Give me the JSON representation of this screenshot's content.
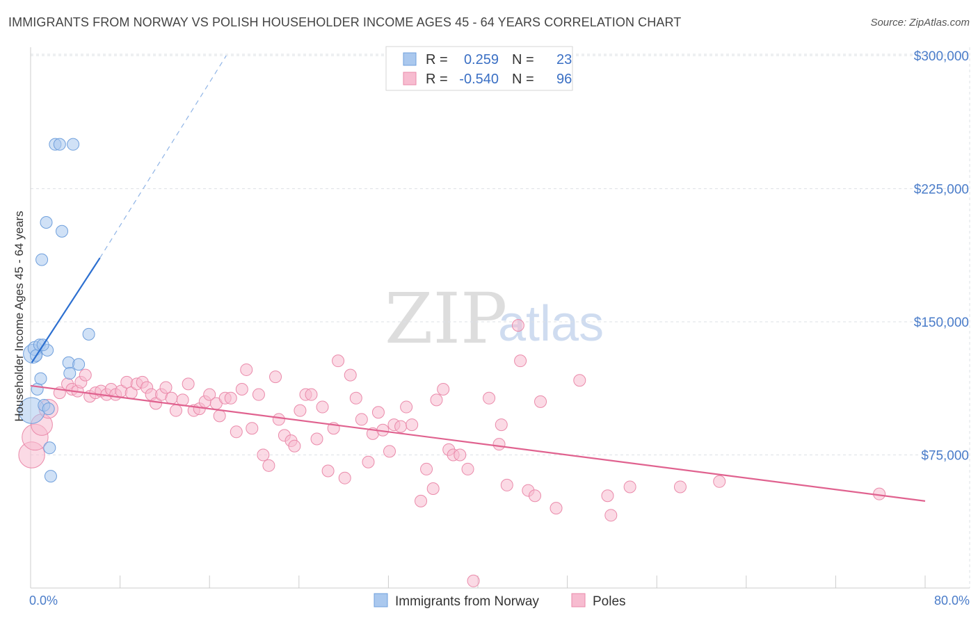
{
  "title": "IMMIGRANTS FROM NORWAY VS POLISH HOUSEHOLDER INCOME AGES 45 - 64 YEARS CORRELATION CHART",
  "source": "Source: ZipAtlas.com",
  "watermark": {
    "zip": "ZIP",
    "atlas": "atlas"
  },
  "colors": {
    "blue_fill": "#aac8ee",
    "blue_stroke": "#6f9fdc",
    "blue_line": "#2c6fd0",
    "pink_fill": "#f7bcd0",
    "pink_stroke": "#ea8aaa",
    "pink_line": "#e0628f",
    "grid": "#dde0e6",
    "tick_text": "#4a7cc9"
  },
  "legend": {
    "rows": [
      {
        "r_label": "R =",
        "r_value": "0.259",
        "n_label": "N =",
        "n_value": "23",
        "series": "blue"
      },
      {
        "r_label": "R =",
        "r_value": "-0.540",
        "n_label": "N =",
        "n_value": "96",
        "series": "pink"
      }
    ]
  },
  "chart_data": {
    "type": "scatter",
    "title": "IMMIGRANTS FROM NORWAY VS POLISH HOUSEHOLDER INCOME AGES 45 - 64 YEARS CORRELATION CHART",
    "xlabel": "",
    "ylabel": "Householder Income Ages 45 - 64 years",
    "xlim": [
      0,
      80
    ],
    "ylim": [
      0,
      315000
    ],
    "x_tick_labels": [
      "0.0%",
      "80.0%"
    ],
    "y_ticks": [
      {
        "value": 75000,
        "label": "$75,000"
      },
      {
        "value": 150000,
        "label": "$150,000"
      },
      {
        "value": 225000,
        "label": "$225,000"
      },
      {
        "value": 300000,
        "label": "$300,000"
      }
    ],
    "grid": true,
    "legend_position": "top-center",
    "series": [
      {
        "name": "Immigrants from Norway",
        "color": "blue",
        "points": [
          [
            0.1,
            100000,
            2.2
          ],
          [
            0.2,
            132000,
            1.6
          ],
          [
            0.4,
            135000,
            1.2
          ],
          [
            0.5,
            131000,
            1.0
          ],
          [
            0.6,
            112000,
            1.0
          ],
          [
            0.8,
            137000,
            1.0
          ],
          [
            0.9,
            118000,
            1.0
          ],
          [
            1.0,
            185000,
            1.0
          ],
          [
            1.2,
            103000,
            1.0
          ],
          [
            1.4,
            206000,
            1.0
          ],
          [
            1.5,
            134000,
            1.0
          ],
          [
            1.6,
            101000,
            1.0
          ],
          [
            1.7,
            79000,
            1.0
          ],
          [
            1.8,
            63000,
            1.0
          ],
          [
            2.2,
            250000,
            1.0
          ],
          [
            2.6,
            250000,
            1.0
          ],
          [
            2.8,
            201000,
            1.0
          ],
          [
            3.4,
            127000,
            1.0
          ],
          [
            3.5,
            121000,
            1.0
          ],
          [
            3.8,
            250000,
            1.0
          ],
          [
            4.3,
            126000,
            1.0
          ],
          [
            5.2,
            143000,
            1.0
          ],
          [
            1.1,
            137000,
            1.0
          ]
        ],
        "trend": {
          "x0": 0.1,
          "y0": 127000,
          "x1": 6.2,
          "y1": 186000,
          "dash_x1": 17.5,
          "dash_y1": 300000
        }
      },
      {
        "name": "Poles",
        "color": "pink",
        "points": [
          [
            0.1,
            75000,
            2.2
          ],
          [
            0.4,
            85000,
            2.2
          ],
          [
            1.0,
            92000,
            1.8
          ],
          [
            1.6,
            101000,
            1.6
          ],
          [
            2.6,
            110000,
            1.0
          ],
          [
            3.3,
            115000,
            1.0
          ],
          [
            3.7,
            112000,
            1.0
          ],
          [
            4.2,
            111000,
            1.0
          ],
          [
            4.5,
            116000,
            1.0
          ],
          [
            4.9,
            120000,
            1.0
          ],
          [
            5.3,
            108000,
            1.0
          ],
          [
            5.8,
            110000,
            1.0
          ],
          [
            6.3,
            111000,
            1.0
          ],
          [
            6.8,
            109000,
            1.0
          ],
          [
            7.2,
            112000,
            1.0
          ],
          [
            7.6,
            109000,
            1.0
          ],
          [
            8.1,
            111000,
            1.0
          ],
          [
            8.6,
            116000,
            1.0
          ],
          [
            9.0,
            110000,
            1.0
          ],
          [
            9.5,
            115000,
            1.0
          ],
          [
            10.0,
            116000,
            1.0
          ],
          [
            10.4,
            113000,
            1.0
          ],
          [
            10.8,
            109000,
            1.0
          ],
          [
            11.2,
            104000,
            1.0
          ],
          [
            11.7,
            109000,
            1.0
          ],
          [
            12.1,
            113000,
            1.0
          ],
          [
            12.6,
            107000,
            1.0
          ],
          [
            13.0,
            100000,
            1.0
          ],
          [
            13.6,
            106000,
            1.0
          ],
          [
            14.1,
            115000,
            1.0
          ],
          [
            14.6,
            100000,
            1.0
          ],
          [
            15.1,
            101000,
            1.0
          ],
          [
            15.6,
            105000,
            1.0
          ],
          [
            16.0,
            109000,
            1.0
          ],
          [
            16.6,
            104000,
            1.0
          ],
          [
            16.9,
            97000,
            1.0
          ],
          [
            17.4,
            107000,
            1.0
          ],
          [
            17.9,
            107000,
            1.0
          ],
          [
            18.4,
            88000,
            1.0
          ],
          [
            18.9,
            112000,
            1.0
          ],
          [
            19.3,
            123000,
            1.0
          ],
          [
            19.8,
            90000,
            1.0
          ],
          [
            20.4,
            109000,
            1.0
          ],
          [
            20.8,
            75000,
            1.0
          ],
          [
            21.3,
            69000,
            1.0
          ],
          [
            21.9,
            119000,
            1.0
          ],
          [
            22.2,
            95000,
            1.0
          ],
          [
            22.7,
            86000,
            1.0
          ],
          [
            23.3,
            83000,
            1.0
          ],
          [
            23.6,
            80000,
            1.0
          ],
          [
            24.1,
            100000,
            1.0
          ],
          [
            24.6,
            109000,
            1.0
          ],
          [
            25.1,
            109000,
            1.0
          ],
          [
            25.6,
            84000,
            1.0
          ],
          [
            26.1,
            102000,
            1.0
          ],
          [
            26.6,
            66000,
            1.0
          ],
          [
            27.1,
            90000,
            1.0
          ],
          [
            27.5,
            128000,
            1.0
          ],
          [
            28.1,
            62000,
            1.0
          ],
          [
            28.6,
            120000,
            1.0
          ],
          [
            29.1,
            107000,
            1.0
          ],
          [
            29.6,
            95000,
            1.0
          ],
          [
            30.2,
            71000,
            1.0
          ],
          [
            30.6,
            87000,
            1.0
          ],
          [
            31.1,
            99000,
            1.0
          ],
          [
            31.5,
            89000,
            1.0
          ],
          [
            32.1,
            77000,
            1.0
          ],
          [
            32.5,
            92000,
            1.0
          ],
          [
            33.1,
            91000,
            1.0
          ],
          [
            33.6,
            102000,
            1.0
          ],
          [
            34.1,
            92000,
            1.0
          ],
          [
            34.9,
            49000,
            1.0
          ],
          [
            35.4,
            67000,
            1.0
          ],
          [
            36.0,
            56000,
            1.0
          ],
          [
            36.3,
            106000,
            1.0
          ],
          [
            36.9,
            112000,
            1.0
          ],
          [
            37.4,
            78000,
            1.0
          ],
          [
            37.8,
            75000,
            1.0
          ],
          [
            38.4,
            75000,
            1.0
          ],
          [
            39.1,
            67000,
            1.0
          ],
          [
            41.0,
            107000,
            1.0
          ],
          [
            41.9,
            81000,
            1.0
          ],
          [
            42.1,
            92000,
            1.0
          ],
          [
            42.6,
            58000,
            1.0
          ],
          [
            43.6,
            148000,
            1.0
          ],
          [
            43.8,
            128000,
            1.0
          ],
          [
            44.5,
            55000,
            1.0
          ],
          [
            45.1,
            52000,
            1.0
          ],
          [
            45.6,
            105000,
            1.0
          ],
          [
            47.0,
            45000,
            1.0
          ],
          [
            49.1,
            117000,
            1.0
          ],
          [
            51.6,
            52000,
            1.0
          ],
          [
            51.9,
            41000,
            1.0
          ],
          [
            53.6,
            57000,
            1.0
          ],
          [
            58.1,
            57000,
            1.0
          ],
          [
            61.6,
            60000,
            1.0
          ],
          [
            75.9,
            53000,
            1.0
          ],
          [
            39.6,
            4000,
            1.0
          ]
        ],
        "trend": {
          "x0": 0,
          "y0": 114000,
          "x1": 80,
          "y1": 49000
        }
      }
    ]
  }
}
